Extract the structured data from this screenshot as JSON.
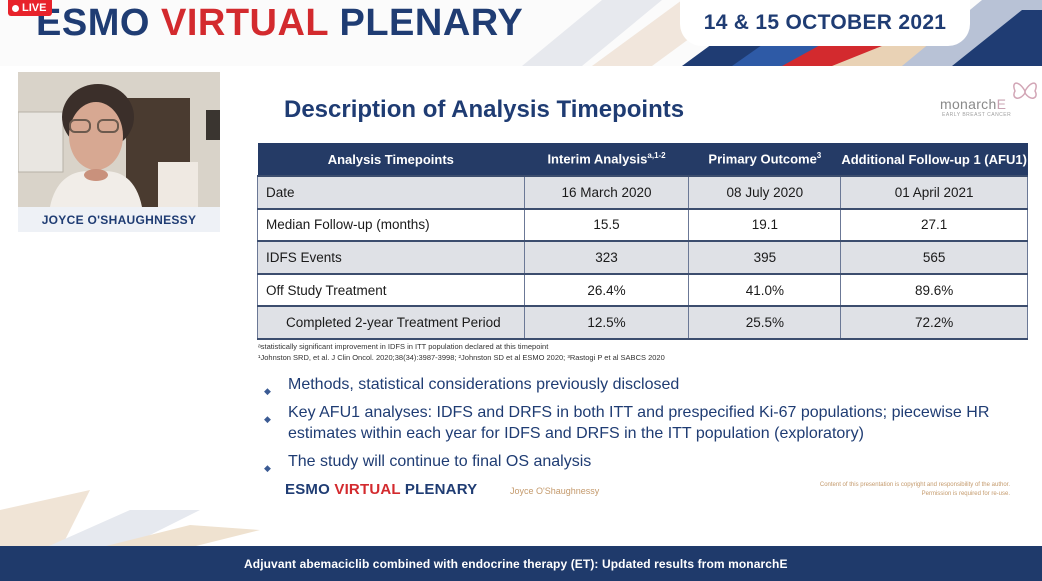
{
  "header": {
    "live_label": "LIVE",
    "event_title_part1": "ESMO",
    "event_title_part2": "VIRTUAL",
    "event_title_part3": "PLENARY",
    "dates": "14 & 15 OCTOBER 2021"
  },
  "speaker": {
    "name": "JOYCE O'SHAUGHNESSY"
  },
  "slide": {
    "title": "Description of Analysis Timepoints",
    "brand": {
      "name_main": "monarch",
      "name_e": "E",
      "subtitle": "EARLY BREAST CANCER",
      "icon": "butterfly-icon"
    },
    "table": {
      "headers": [
        {
          "text": "Analysis Timepoints",
          "sup": ""
        },
        {
          "text": "Interim Analysis",
          "sup": "a,1-2"
        },
        {
          "text": "Primary Outcome",
          "sup": "3"
        },
        {
          "text": "Additional Follow-up 1 (AFU1)",
          "sup": ""
        }
      ],
      "rows": [
        {
          "label": "Date",
          "values": [
            "16 March 2020",
            "08 July 2020",
            "01 April 2021"
          ]
        },
        {
          "label": "Median Follow-up (months)",
          "values": [
            "15.5",
            "19.1",
            "27.1"
          ]
        },
        {
          "label": "IDFS Events",
          "values": [
            "323",
            "395",
            "565"
          ]
        },
        {
          "label": "Off Study Treatment",
          "values": [
            "26.4%",
            "41.0%",
            "89.6%"
          ]
        },
        {
          "label": "Completed 2-year Treatment Period",
          "values": [
            "12.5%",
            "25.5%",
            "72.2%"
          ]
        }
      ]
    },
    "footnotes": [
      "ᵃstatistically significant improvement in IDFS in ITT population declared at this timepoint",
      "¹Johnston SRD, et al. J Clin Oncol. 2020;38(34):3987-3998; ²Johnston SD et al  ESMO 2020; ³Rastogi P et al SABCS 2020"
    ],
    "bullets": [
      "Methods, statistical considerations previously disclosed",
      "Key AFU1 analyses: IDFS and DRFS in both ITT and prespecified Ki-67 populations; piecewise HR estimates within each year for IDFS and DRFS in the ITT population (exploratory)",
      "The study will continue to final OS analysis"
    ],
    "footer": {
      "brand_part1": "ESMO",
      "brand_part2": "VIRTUAL",
      "brand_part3": "PLENARY",
      "speaker": "Joyce O'Shaughnessy",
      "copyright_line1": "Content of this presentation is copyright and responsibility of the author.",
      "copyright_line2": "Permission is required for re-use."
    }
  },
  "bottom_bar": {
    "caption": "Adjuvant abemaciclib combined with endocrine therapy (ET): Updated results from monarchE"
  },
  "colors": {
    "brand_blue": "#1f3c73",
    "brand_red": "#d32a2e",
    "table_header": "#253b66",
    "live_red": "#e8232b"
  }
}
